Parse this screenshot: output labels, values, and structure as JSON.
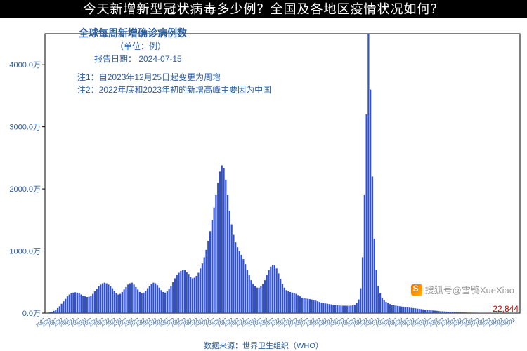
{
  "header_text": "今天新增新型冠状病毒多少例？全国及各地区疫情状况如何？",
  "chart": {
    "type": "bar",
    "title": "全球每周新增确诊病例数",
    "unit_label": "（单位：例）",
    "report_date_label": "报告日期：",
    "report_date": "2024-07-15",
    "note1": "注1：自2023年12月25日起变更为周增",
    "note2": "注2：2022年底和2023年初的新增高峰主要因为中国",
    "source_note": "数据来源：世界卫生组织（WHO）",
    "ylabel_suffix": "万",
    "ylim": [
      0,
      4500
    ],
    "ytick_step": 1000,
    "yticks_raw": [
      0,
      1000,
      2000,
      3000,
      4000
    ],
    "ytick_labels": [
      "0.0万",
      "1000.0万",
      "2000.0万",
      "3000.0万",
      "4000.0万"
    ],
    "bar_color": "#3050d0",
    "last_value_label": "22,844",
    "last_value_color": "#cc0000",
    "axis_color": "#000000",
    "grid_color": "#e0e0e0",
    "background_color": "#ffffff",
    "title_fontsize": 14,
    "label_fontsize": 11,
    "note_fontsize": 12,
    "bar_width_ratio": 0.8,
    "values": [
      5,
      8,
      12,
      20,
      35,
      55,
      80,
      110,
      150,
      190,
      230,
      270,
      300,
      320,
      330,
      335,
      330,
      320,
      300,
      280,
      270,
      260,
      265,
      280,
      310,
      350,
      390,
      430,
      460,
      480,
      490,
      480,
      460,
      430,
      400,
      360,
      320,
      300,
      310,
      340,
      380,
      420,
      460,
      480,
      490,
      460,
      420,
      380,
      340,
      320,
      330,
      360,
      400,
      440,
      470,
      490,
      480,
      450,
      410,
      370,
      340,
      330,
      350,
      390,
      440,
      500,
      560,
      610,
      650,
      680,
      700,
      690,
      660,
      620,
      580,
      560,
      570,
      600,
      650,
      720,
      800,
      900,
      1020,
      1160,
      1320,
      1500,
      1700,
      1900,
      2100,
      2280,
      2380,
      2330,
      2150,
      1900,
      1650,
      1430,
      1260,
      1140,
      1060,
      1000,
      940,
      870,
      790,
      700,
      610,
      530,
      470,
      430,
      410,
      410,
      430,
      470,
      530,
      610,
      690,
      750,
      780,
      770,
      720,
      640,
      550,
      470,
      410,
      370,
      350,
      340,
      330,
      320,
      310,
      290,
      270,
      250,
      240,
      235,
      230,
      225,
      218,
      210,
      200,
      190,
      180,
      170,
      160,
      155,
      150,
      145,
      140,
      135,
      130,
      125,
      122,
      120,
      119,
      119,
      118,
      118,
      120,
      125,
      135,
      160,
      220,
      400,
      900,
      1900,
      3200,
      4500,
      3600,
      2200,
      1200,
      700,
      440,
      320,
      250,
      210,
      180,
      160,
      145,
      135,
      126,
      120,
      115,
      110,
      105,
      100,
      96,
      92,
      88,
      84,
      80,
      76,
      72,
      68,
      64,
      60,
      56,
      52,
      48,
      45,
      42,
      39,
      36,
      33,
      30,
      28,
      26,
      24,
      22,
      20,
      18,
      16,
      15,
      14,
      13,
      12,
      11,
      10,
      9,
      9,
      8,
      8,
      7,
      7,
      6,
      6,
      6,
      5,
      5,
      5,
      5,
      4,
      4,
      4,
      4,
      4,
      3,
      3,
      3,
      3,
      3,
      3,
      2,
      2,
      2
    ],
    "x_axis_region_label": "2020 — 2024（每周）"
  },
  "watermark": {
    "text": "搜狐号@雪鸮XueXiao",
    "logo_name": "sohu-logo"
  }
}
